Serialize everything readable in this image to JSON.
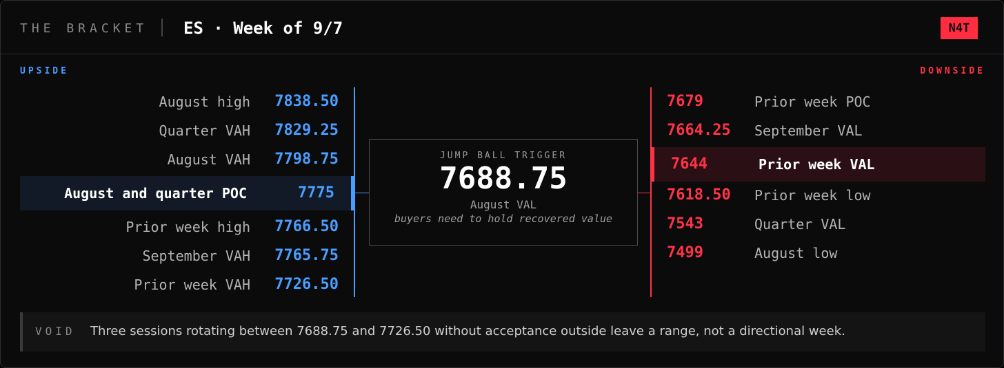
{
  "header": {
    "brand": "THE BRACKET",
    "title": "ES · Week of 9/7",
    "badge": "N4T"
  },
  "upside": {
    "label": "UPSIDE",
    "levels": [
      {
        "label": "August high",
        "price": "7838.50"
      },
      {
        "label": "Quarter VAH",
        "price": "7829.25"
      },
      {
        "label": "August VAH",
        "price": "7798.75"
      },
      {
        "label": "August and quarter POC",
        "price": "7775",
        "highlight": true
      },
      {
        "label": "Prior week high",
        "price": "7766.50"
      },
      {
        "label": "September VAH",
        "price": "7765.75"
      },
      {
        "label": "Prior week VAH",
        "price": "7726.50"
      }
    ]
  },
  "downside": {
    "label": "DOWNSIDE",
    "levels": [
      {
        "label": "Prior week POC",
        "price": "7679"
      },
      {
        "label": "September VAL",
        "price": "7664.25"
      },
      {
        "label": "Prior week VAL",
        "price": "7644",
        "highlight": true
      },
      {
        "label": "Prior week low",
        "price": "7618.50"
      },
      {
        "label": "Quarter VAL",
        "price": "7543"
      },
      {
        "label": "August low",
        "price": "7499"
      }
    ]
  },
  "trigger": {
    "kicker": "JUMP BALL TRIGGER",
    "price": "7688.75",
    "label": "August VAL",
    "note": "buyers need to hold recovered value"
  },
  "footer": {
    "tag": "VOID",
    "text": "Three sessions rotating between 7688.75 and 7726.50 without acceptance outside leave a range, not a directional week."
  }
}
